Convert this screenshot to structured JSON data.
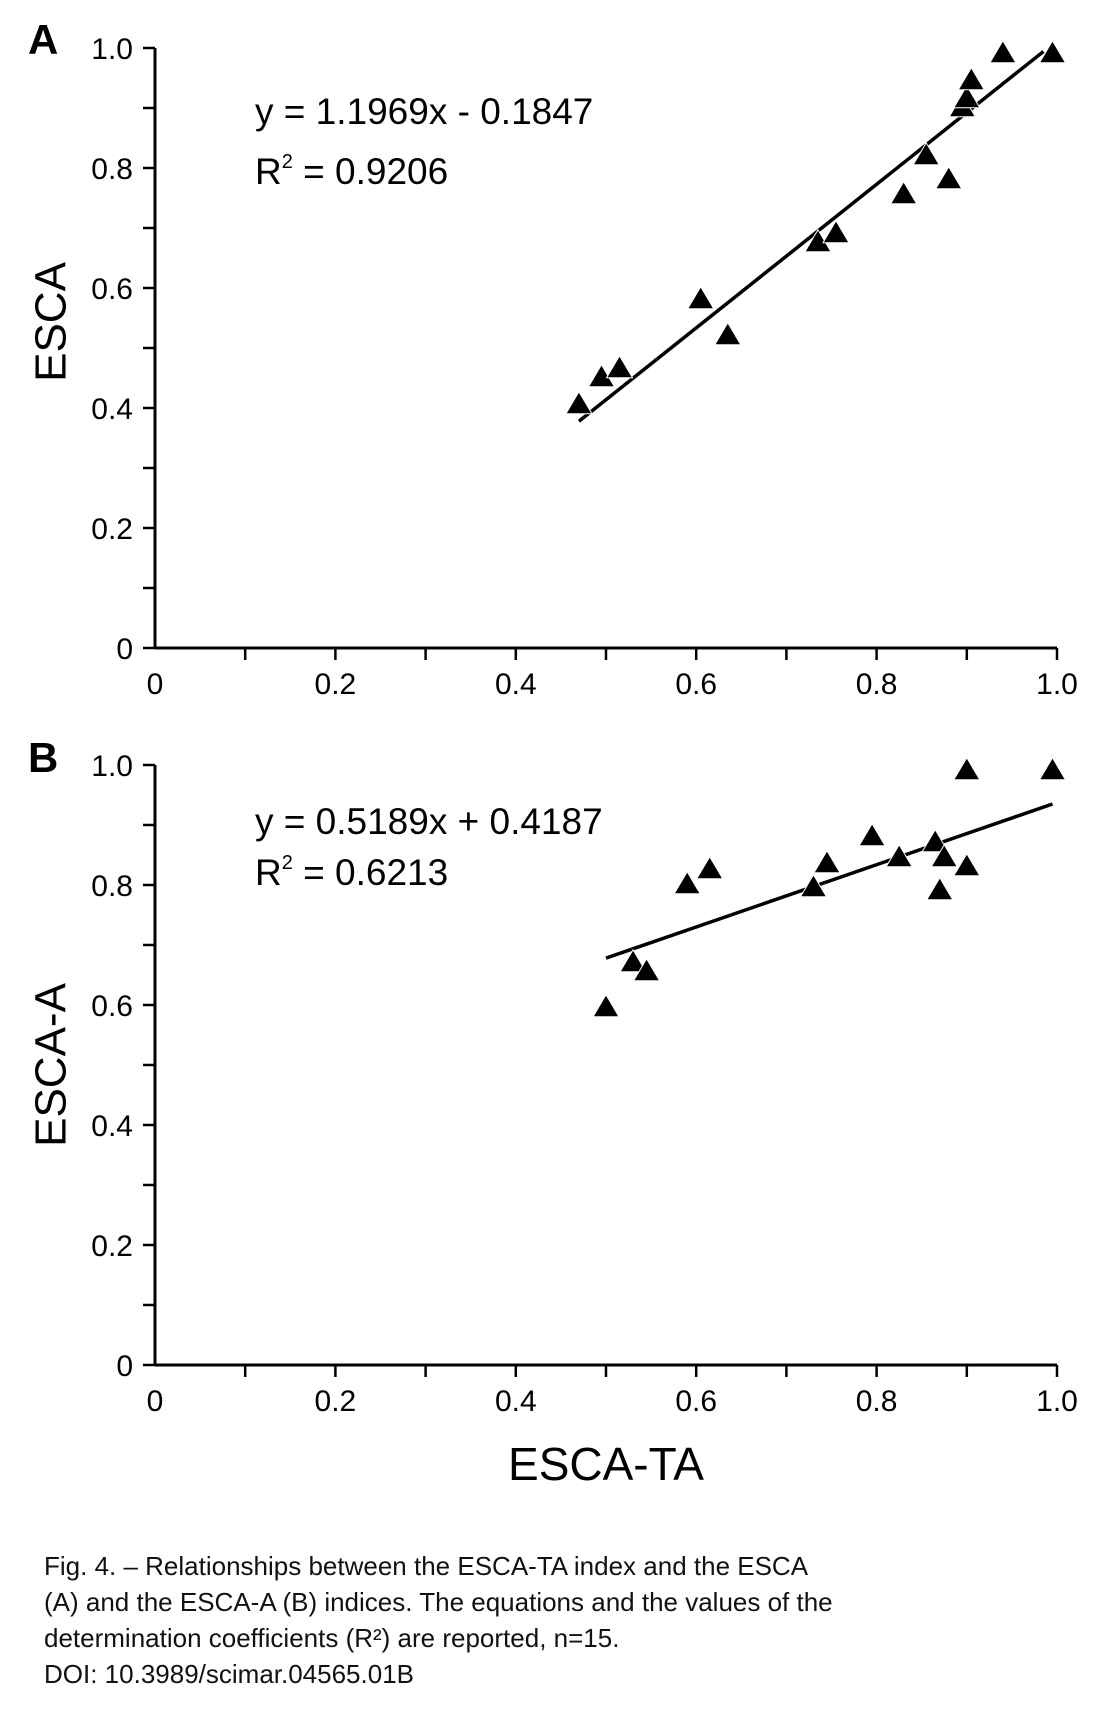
{
  "figure": {
    "caption_lines": [
      "Fig. 4. – Relationships between the ESCA-TA index and the ESCA",
      "(A) and the ESCA-A (B) indices. The equations and the values of the",
      "determination coefficients (R²) are reported, n=15.",
      "DOI: 10.3989/scimar.04565.01B"
    ]
  },
  "chart_data": [
    {
      "type": "scatter",
      "panel_label": "A",
      "title": "",
      "xlabel": "",
      "ylabel": "ESCA",
      "xlim": [
        0,
        1.0
      ],
      "ylim": [
        0,
        1.0
      ],
      "x_ticks": [
        0,
        0.2,
        0.4,
        0.6,
        0.8,
        1.0
      ],
      "x_tick_labels": [
        "0",
        "0.2",
        "0.4",
        "0.6",
        "0.8",
        "1.0"
      ],
      "y_ticks": [
        0,
        0.2,
        0.4,
        0.6,
        0.8,
        1.0
      ],
      "y_tick_labels": [
        "0",
        "0.2",
        "0.4",
        "0.6",
        "0.8",
        "1.0"
      ],
      "grid": false,
      "marker": "triangle",
      "marker_color": "#000000",
      "series": [
        {
          "x": [
            0.47,
            0.495,
            0.515,
            0.605,
            0.635,
            0.735,
            0.755,
            0.83,
            0.855,
            0.88,
            0.895,
            0.9,
            0.905,
            0.94,
            0.995
          ],
          "y": [
            0.405,
            0.45,
            0.465,
            0.58,
            0.52,
            0.675,
            0.69,
            0.755,
            0.82,
            0.78,
            0.9,
            0.915,
            0.945,
            0.99,
            0.99
          ]
        }
      ],
      "trendline": {
        "slope": 1.1969,
        "intercept": -0.1847,
        "x_range": [
          0.47,
          0.985
        ]
      },
      "equation": "y = 1.1969x - 0.1847",
      "r2_label": "R",
      "r2_sup": "2",
      "r2_value": " = 0.9206"
    },
    {
      "type": "scatter",
      "panel_label": "B",
      "title": "",
      "xlabel": "ESCA-TA",
      "ylabel": "ESCA-A",
      "xlim": [
        0,
        1.0
      ],
      "ylim": [
        0,
        1.0
      ],
      "x_ticks": [
        0,
        0.2,
        0.4,
        0.6,
        0.8,
        1.0
      ],
      "x_tick_labels": [
        "0",
        "0.2",
        "0.4",
        "0.6",
        "0.8",
        "1.0"
      ],
      "y_ticks": [
        0,
        0.2,
        0.4,
        0.6,
        0.8,
        1.0
      ],
      "y_tick_labels": [
        "0",
        "0.2",
        "0.4",
        "0.6",
        "0.8",
        "1.0"
      ],
      "grid": false,
      "marker": "triangle",
      "marker_color": "#000000",
      "series": [
        {
          "x": [
            0.5,
            0.53,
            0.545,
            0.59,
            0.615,
            0.73,
            0.745,
            0.795,
            0.825,
            0.865,
            0.87,
            0.875,
            0.9,
            0.9,
            0.995
          ],
          "y": [
            0.595,
            0.67,
            0.655,
            0.8,
            0.825,
            0.795,
            0.835,
            0.88,
            0.845,
            0.87,
            0.79,
            0.845,
            0.83,
            0.99,
            0.99
          ]
        }
      ],
      "trendline": {
        "slope": 0.5189,
        "intercept": 0.4187,
        "x_range": [
          0.5,
          0.995
        ]
      },
      "equation": "y = 0.5189x + 0.4187",
      "r2_label": "R",
      "r2_sup": "2",
      "r2_value": " = 0.6213"
    }
  ]
}
